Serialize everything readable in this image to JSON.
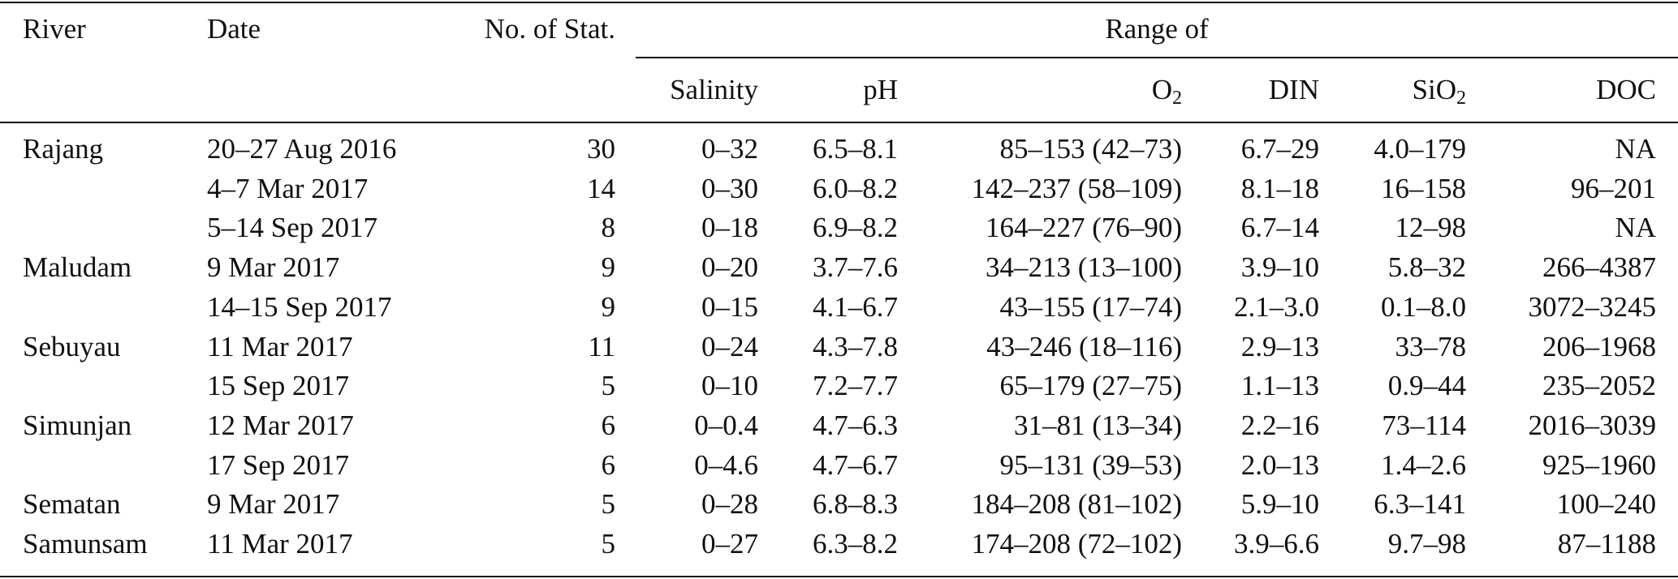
{
  "table": {
    "header": {
      "river": "River",
      "date": "Date",
      "no_of_stat": "No. of Stat.",
      "range_of": "Range of",
      "salinity": "Salinity",
      "ph": "pH",
      "o2_base": "O",
      "o2_sub": "2",
      "din": "DIN",
      "sio2_base": "SiO",
      "sio2_sub": "2",
      "doc": "DOC"
    },
    "rows": [
      {
        "river": "Rajang",
        "date": "20–27 Aug 2016",
        "stat": "30",
        "salinity": "0–32",
        "ph": "6.5–8.1",
        "o2": "85–153 (42–73)",
        "din": "6.7–29",
        "sio2": "4.0–179",
        "doc": "NA"
      },
      {
        "river": "",
        "date": "4–7 Mar 2017",
        "stat": "14",
        "salinity": "0–30",
        "ph": "6.0–8.2",
        "o2": "142–237 (58–109)",
        "din": "8.1–18",
        "sio2": "16–158",
        "doc": "96–201"
      },
      {
        "river": "",
        "date": "5–14 Sep 2017",
        "stat": "8",
        "salinity": "0–18",
        "ph": "6.9–8.2",
        "o2": "164–227 (76–90)",
        "din": "6.7–14",
        "sio2": "12–98",
        "doc": "NA"
      },
      {
        "river": "Maludam",
        "date": "9 Mar 2017",
        "stat": "9",
        "salinity": "0–20",
        "ph": "3.7–7.6",
        "o2": "34–213 (13–100)",
        "din": "3.9–10",
        "sio2": "5.8–32",
        "doc": "266–4387"
      },
      {
        "river": "",
        "date": "14–15 Sep 2017",
        "stat": "9",
        "salinity": "0–15",
        "ph": "4.1–6.7",
        "o2": "43–155 (17–74)",
        "din": "2.1–3.0",
        "sio2": "0.1–8.0",
        "doc": "3072–3245"
      },
      {
        "river": "Sebuyau",
        "date": "11 Mar 2017",
        "stat": "11",
        "salinity": "0–24",
        "ph": "4.3–7.8",
        "o2": "43–246 (18–116)",
        "din": "2.9–13",
        "sio2": "33–78",
        "doc": "206–1968"
      },
      {
        "river": "",
        "date": "15 Sep 2017",
        "stat": "5",
        "salinity": "0–10",
        "ph": "7.2–7.7",
        "o2": "65–179 (27–75)",
        "din": "1.1–13",
        "sio2": "0.9–44",
        "doc": "235–2052"
      },
      {
        "river": "Simunjan",
        "date": "12 Mar 2017",
        "stat": "6",
        "salinity": "0–0.4",
        "ph": "4.7–6.3",
        "o2": "31–81 (13–34)",
        "din": "2.2–16",
        "sio2": "73–114",
        "doc": "2016–3039"
      },
      {
        "river": "",
        "date": "17 Sep 2017",
        "stat": "6",
        "salinity": "0–4.6",
        "ph": "4.7–6.7",
        "o2": "95–131 (39–53)",
        "din": "2.0–13",
        "sio2": "1.4–2.6",
        "doc": "925–1960"
      },
      {
        "river": "Sematan",
        "date": "9 Mar 2017",
        "stat": "5",
        "salinity": "0–28",
        "ph": "6.8–8.3",
        "o2": "184–208 (81–102)",
        "din": "5.9–10",
        "sio2": "6.3–141",
        "doc": "100–240"
      },
      {
        "river": "Samunsam",
        "date": "11 Mar 2017",
        "stat": "5",
        "salinity": "0–27",
        "ph": "6.3–8.2",
        "o2": "174–208 (72–102)",
        "din": "3.9–6.6",
        "sio2": "9.7–98",
        "doc": "87–1188"
      }
    ]
  }
}
